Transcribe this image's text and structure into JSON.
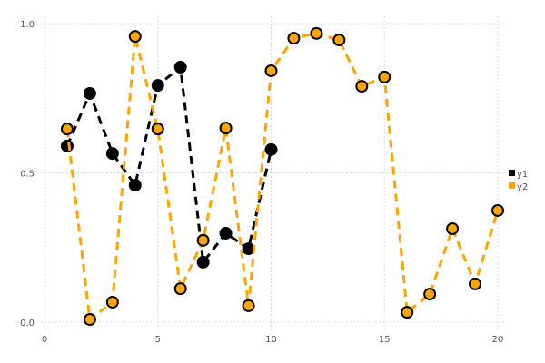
{
  "chart_data": {
    "type": "line",
    "title": "",
    "xlabel": "",
    "ylabel": "",
    "xlim": [
      0,
      20.3
    ],
    "ylim": [
      0,
      1.0
    ],
    "xticks": [
      0,
      5,
      10,
      15,
      20
    ],
    "xtick_labels": [
      "0",
      "5",
      "10",
      "15",
      "20"
    ],
    "yticks": [
      0,
      0.5,
      1.0
    ],
    "ytick_labels": [
      "0.0",
      "0.5",
      "1.0"
    ],
    "grid": true,
    "legend_position": "right",
    "series": [
      {
        "name": "y1",
        "color": "#000000",
        "line_style": "dashed",
        "marker": "circle",
        "x": [
          1,
          2,
          3,
          4,
          5,
          6,
          7,
          8,
          9,
          10
        ],
        "y": [
          0.59,
          0.766,
          0.565,
          0.459,
          0.793,
          0.854,
          0.201,
          0.298,
          0.246,
          0.578
        ]
      },
      {
        "name": "y2",
        "color": "#FFA500",
        "line_style": "dashed",
        "marker": "circle",
        "x": [
          1,
          2,
          3,
          4,
          5,
          6,
          7,
          8,
          9,
          10,
          11,
          12,
          13,
          14,
          15,
          16,
          17,
          18,
          19,
          20
        ],
        "y": [
          0.647,
          0.009,
          0.067,
          0.957,
          0.647,
          0.112,
          0.274,
          0.65,
          0.055,
          0.842,
          0.951,
          0.967,
          0.945,
          0.79,
          0.821,
          0.033,
          0.094,
          0.313,
          0.128,
          0.374
        ]
      }
    ]
  }
}
